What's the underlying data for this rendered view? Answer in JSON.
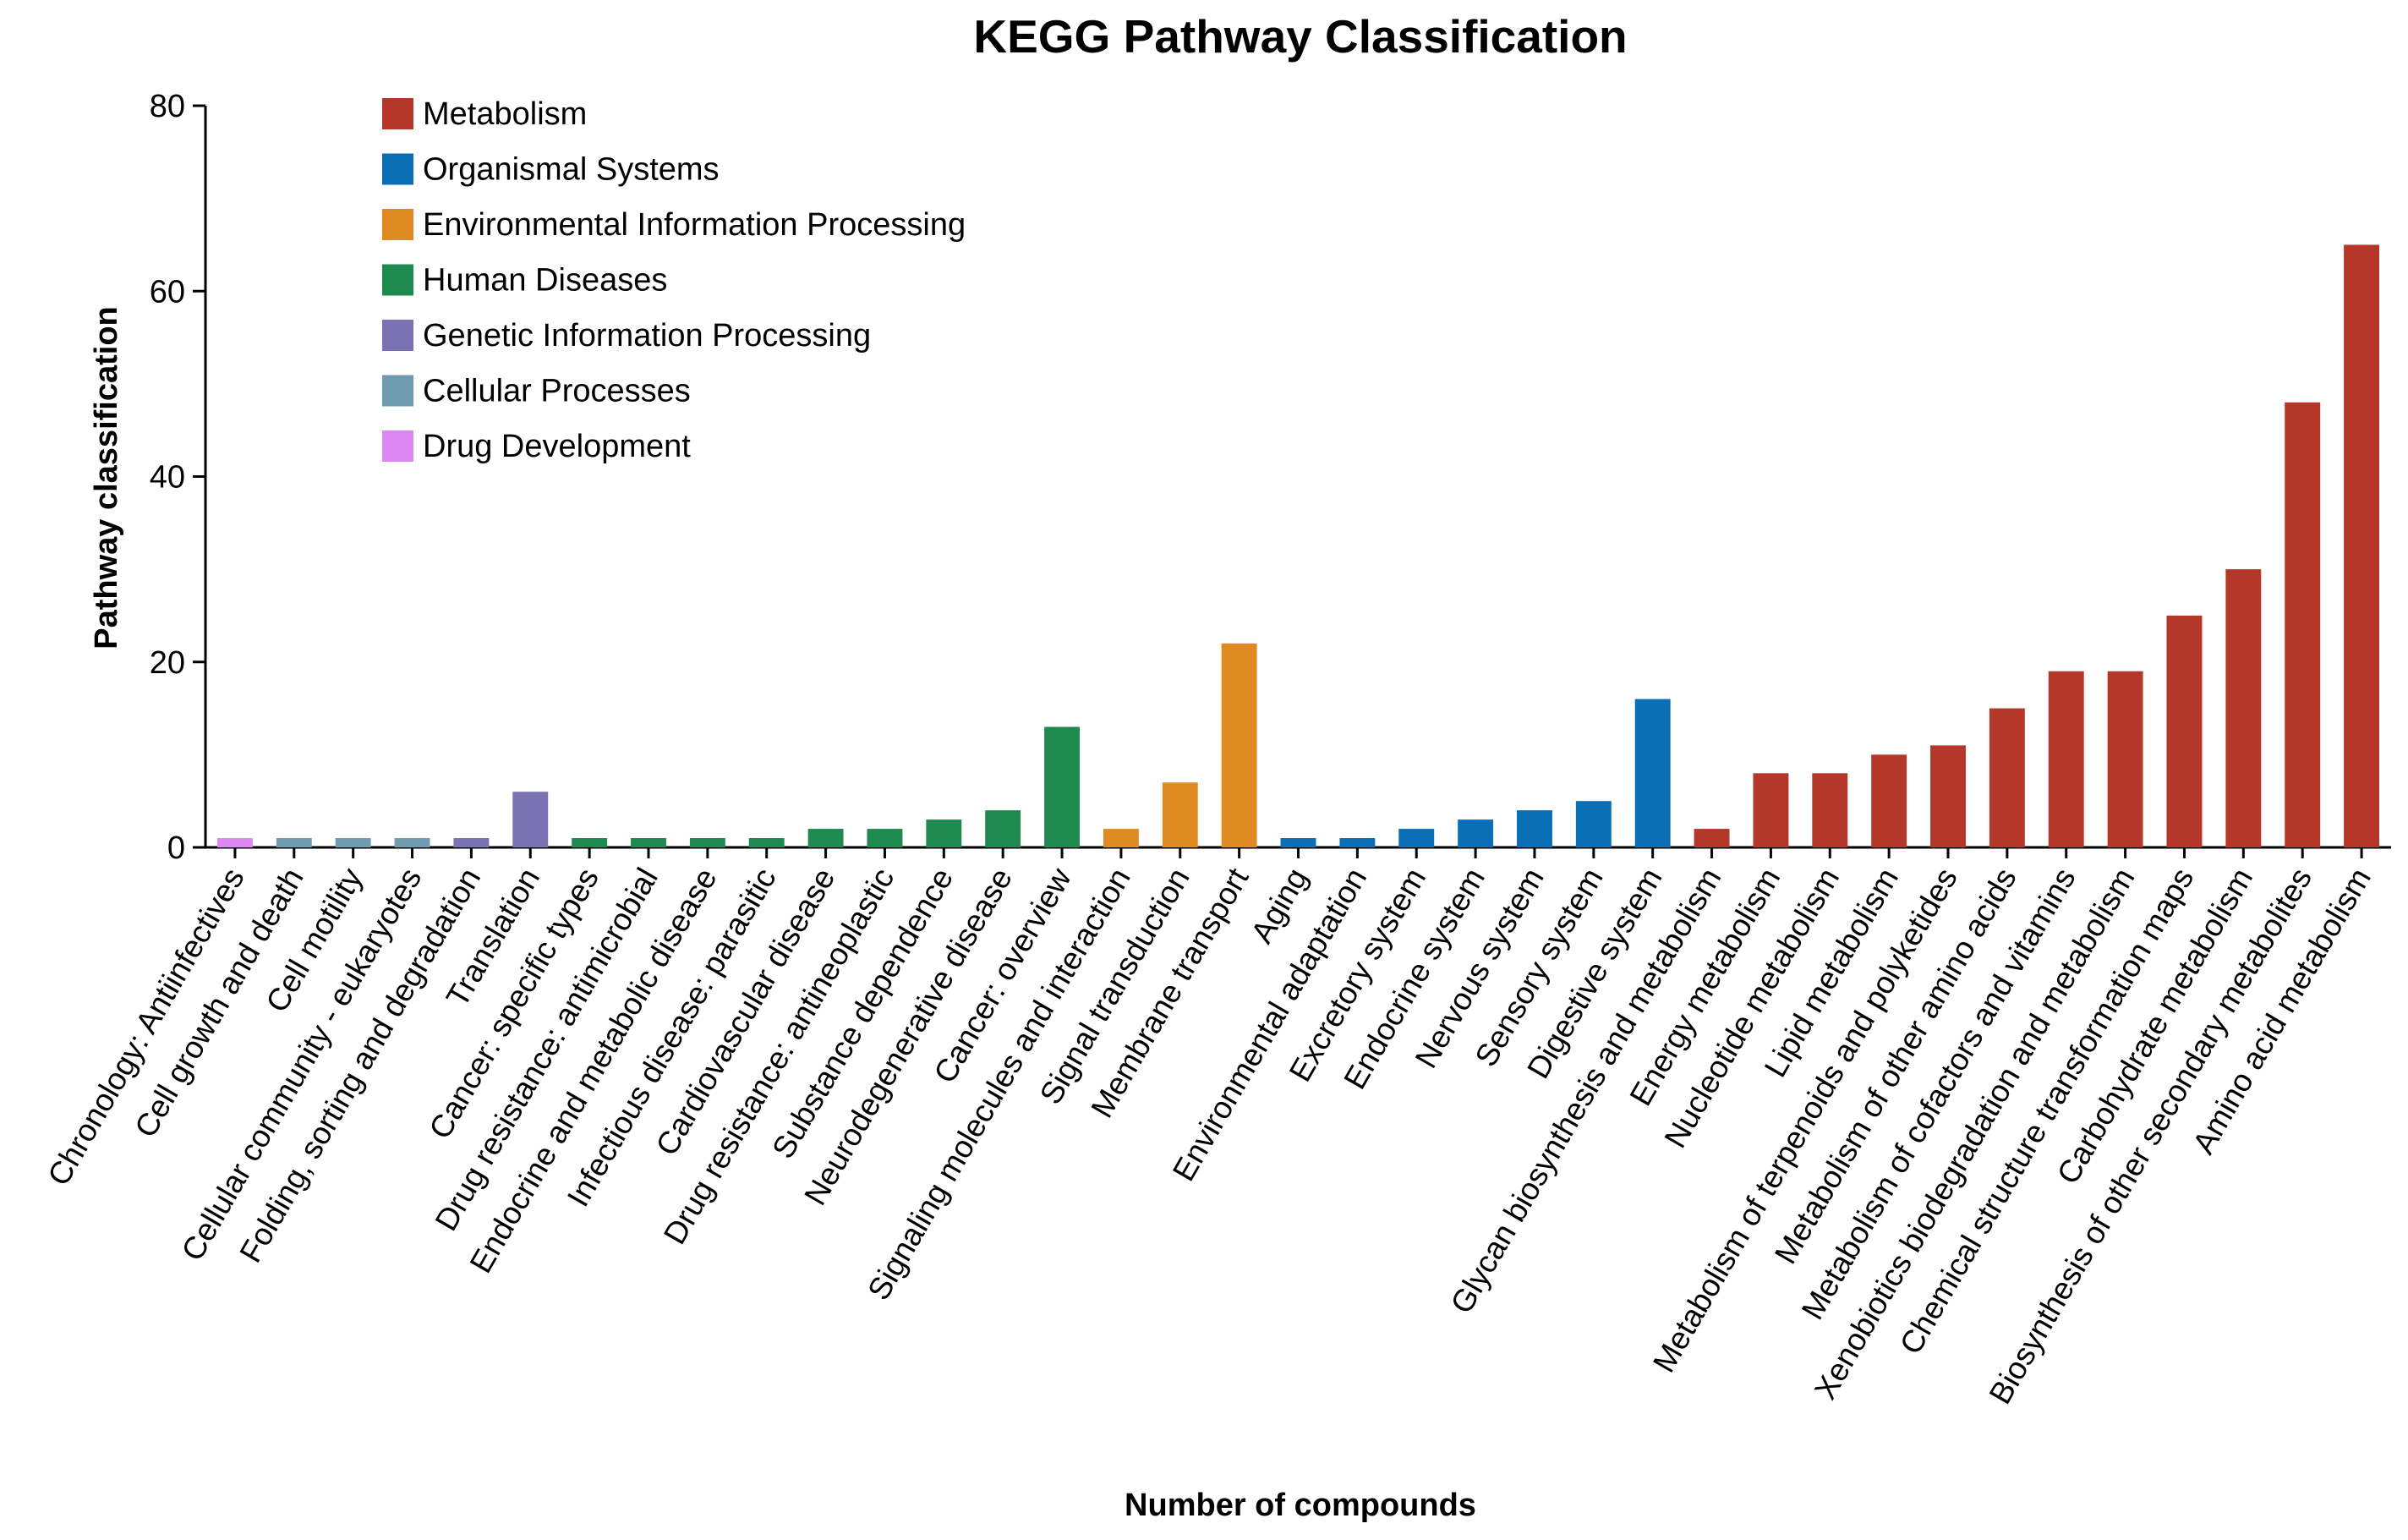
{
  "chart_data": {
    "type": "bar",
    "title": "KEGG Pathway Classification",
    "xlabel": "Number of compounds",
    "ylabel": "Pathway classification",
    "ylim": [
      0,
      80
    ],
    "yticks": [
      0,
      20,
      40,
      60,
      80
    ],
    "grid": false,
    "legend_position": "top-left",
    "legend": [
      {
        "name": "Metabolism",
        "color": "#b5372a"
      },
      {
        "name": "Organismal Systems",
        "color": "#0b6fb5"
      },
      {
        "name": "Environmental Information Processing",
        "color": "#e08a24"
      },
      {
        "name": "Human Diseases",
        "color": "#1f8a4f"
      },
      {
        "name": "Genetic Information Processing",
        "color": "#7a72b2"
      },
      {
        "name": "Cellular Processes",
        "color": "#6f9cb1"
      },
      {
        "name": "Drug Development",
        "color": "#dd88f2"
      }
    ],
    "categories": [
      "Chronology: Antiinfectives",
      "Cell growth and death",
      "Cell motility",
      "Cellular community - eukaryotes",
      "Folding, sorting and degradation",
      "Translation",
      "Cancer: specific types",
      "Drug resistance: antimicrobial",
      "Endocrine and metabolic disease",
      "Infectious disease: parasitic",
      "Cardiovascular disease",
      "Drug resistance: antineoplastic",
      "Substance dependence",
      "Neurodegenerative disease",
      "Cancer: overview",
      "Signaling molecules and interaction",
      "Signal transduction",
      "Membrane transport",
      "Aging",
      "Environmental adaptation",
      "Excretory system",
      "Endocrine system",
      "Nervous system",
      "Sensory system",
      "Digestive system",
      "Glycan biosynthesis and metabolism",
      "Energy metabolism",
      "Nucleotide metabolism",
      "Lipid metabolism",
      "Metabolism of terpenoids and polyketides",
      "Metabolism of other amino acids",
      "Metabolism of cofactors and vitamins",
      "Xenobiotics biodegradation and metabolism",
      "Chemical structure transformation maps",
      "Carbohydrate metabolism",
      "Biosynthesis of other secondary metabolites",
      "Amino acid metabolism"
    ],
    "values": [
      1,
      1,
      1,
      1,
      1,
      6,
      1,
      1,
      1,
      1,
      2,
      2,
      3,
      4,
      13,
      2,
      7,
      22,
      1,
      1,
      2,
      3,
      4,
      5,
      16,
      2,
      8,
      8,
      10,
      11,
      15,
      19,
      19,
      25,
      30,
      48,
      65
    ],
    "groups": [
      "Drug Development",
      "Cellular Processes",
      "Cellular Processes",
      "Cellular Processes",
      "Genetic Information Processing",
      "Genetic Information Processing",
      "Human Diseases",
      "Human Diseases",
      "Human Diseases",
      "Human Diseases",
      "Human Diseases",
      "Human Diseases",
      "Human Diseases",
      "Human Diseases",
      "Human Diseases",
      "Environmental Information Processing",
      "Environmental Information Processing",
      "Environmental Information Processing",
      "Organismal Systems",
      "Organismal Systems",
      "Organismal Systems",
      "Organismal Systems",
      "Organismal Systems",
      "Organismal Systems",
      "Organismal Systems",
      "Metabolism",
      "Metabolism",
      "Metabolism",
      "Metabolism",
      "Metabolism",
      "Metabolism",
      "Metabolism",
      "Metabolism",
      "Metabolism",
      "Metabolism",
      "Metabolism",
      "Metabolism"
    ]
  }
}
